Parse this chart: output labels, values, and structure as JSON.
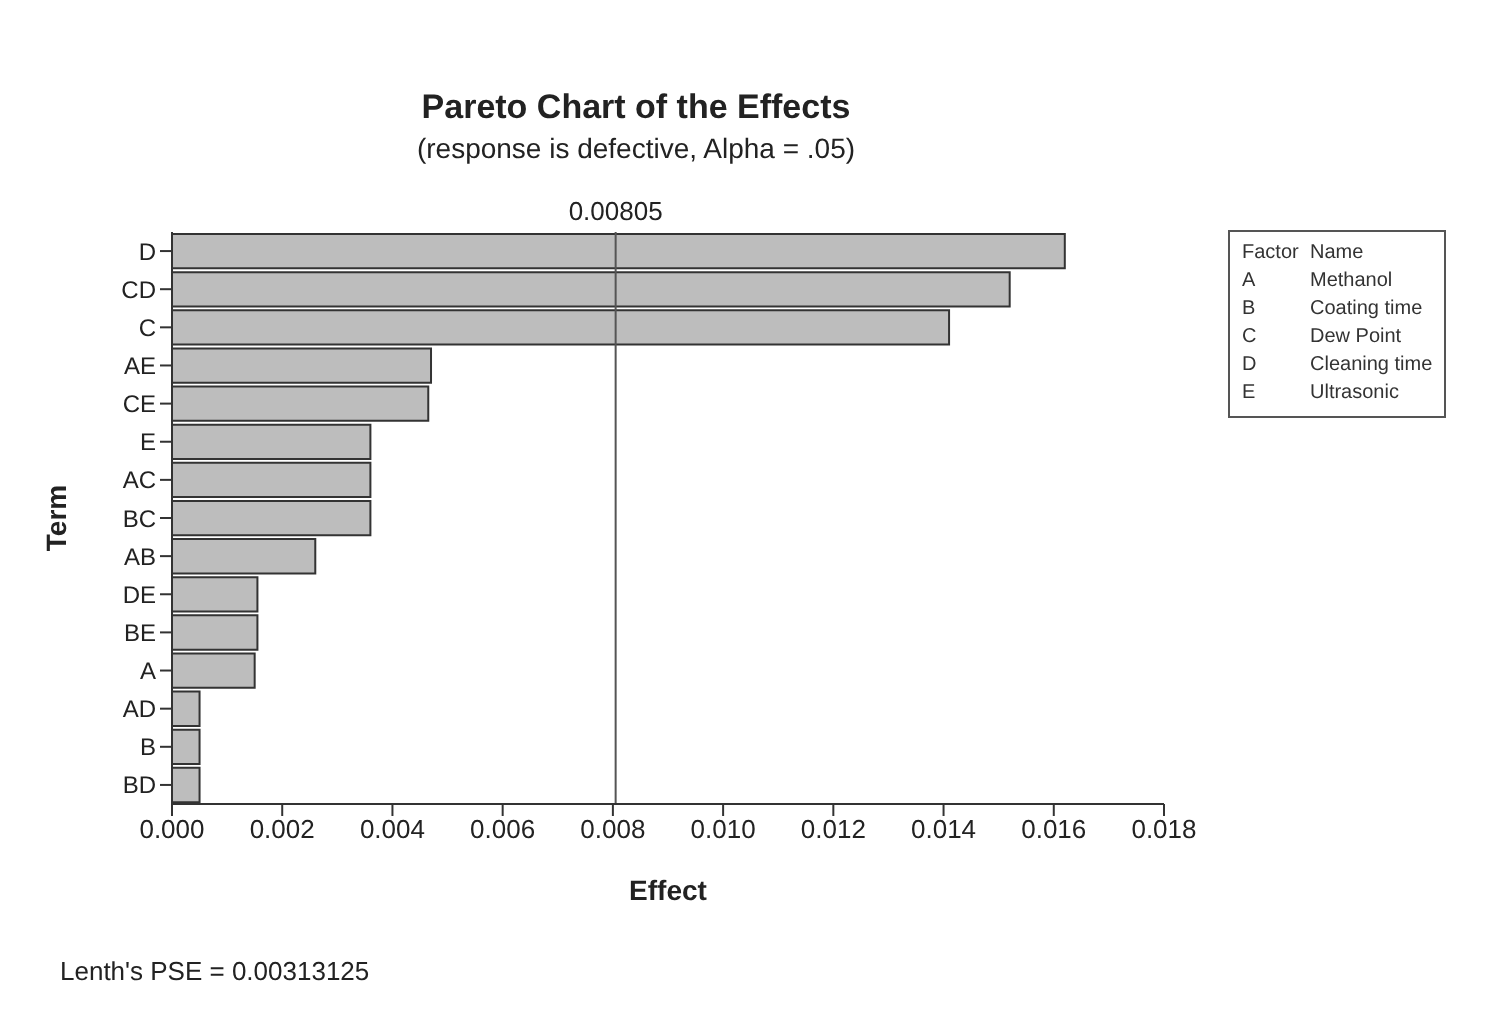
{
  "chart_data": {
    "type": "bar",
    "orientation": "horizontal",
    "title": "Pareto Chart of the Effects",
    "subtitle": "(response is defective, Alpha = .05)",
    "xlabel": "Effect",
    "ylabel": "Term",
    "categories": [
      "D",
      "CD",
      "C",
      "AE",
      "CE",
      "E",
      "AC",
      "BC",
      "AB",
      "DE",
      "BE",
      "A",
      "AD",
      "B",
      "BD"
    ],
    "values": [
      0.0162,
      0.0152,
      0.0141,
      0.0047,
      0.00465,
      0.0036,
      0.0036,
      0.0036,
      0.0026,
      0.00155,
      0.00155,
      0.0015,
      0.0005,
      0.0005,
      0.0005
    ],
    "color": "#bdbdbd",
    "xlim": [
      0,
      0.018
    ],
    "xticks": [
      {
        "value": 0,
        "label": "0.000"
      },
      {
        "value": 0.002,
        "label": "0.002"
      },
      {
        "value": 0.004,
        "label": "0.004"
      },
      {
        "value": 0.006,
        "label": "0.006"
      },
      {
        "value": 0.008,
        "label": "0.008"
      },
      {
        "value": 0.01,
        "label": "0.010"
      },
      {
        "value": 0.012,
        "label": "0.012"
      },
      {
        "value": 0.014,
        "label": "0.014"
      },
      {
        "value": 0.016,
        "label": "0.016"
      },
      {
        "value": 0.018,
        "label": "0.018"
      }
    ],
    "ref_lines": [
      {
        "axis": "x",
        "value": 0.00805,
        "label": "0.00805",
        "color": "#555555"
      }
    ],
    "legend_title": "Factor\tName",
    "annotations": [
      "A\tMethanol",
      "B\tCoating time",
      "C\tDew Point",
      "D\tCleaning time",
      "E\tUltrasonic",
      "Lenth's PSE = 0.00313125"
    ],
    "legend": false
  }
}
